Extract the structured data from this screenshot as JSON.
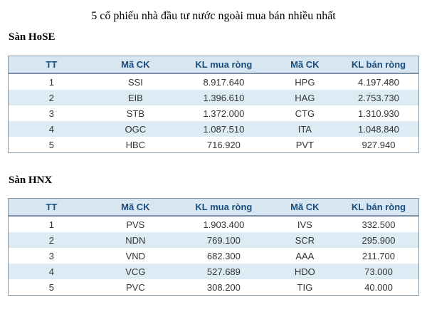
{
  "title": "5 cổ phiếu nhà đầu tư nước ngoài mua bán nhiều nhất",
  "colors": {
    "header_bg": "#d7e6f0",
    "stripe_bg": "#ddecf4",
    "header_text": "#1a4e7e",
    "body_text": "#333333",
    "border": "#8798a6",
    "header_border": "#7d93a5"
  },
  "columns": [
    "TT",
    "Mã CK",
    "KL mua ròng",
    "Mã CK",
    "KL bán ròng"
  ],
  "sections": [
    {
      "heading": "Sàn HoSE",
      "rows": [
        [
          "1",
          "SSI",
          "8.917.640",
          "HPG",
          "4.197.480"
        ],
        [
          "2",
          "EIB",
          "1.396.610",
          "HAG",
          "2.753.730"
        ],
        [
          "3",
          "STB",
          "1.372.000",
          "CTG",
          "1.310.930"
        ],
        [
          "4",
          "OGC",
          "1.087.510",
          "ITA",
          "1.048.840"
        ],
        [
          "5",
          "HBC",
          "716.920",
          "PVT",
          "927.940"
        ]
      ]
    },
    {
      "heading": "Sàn HNX",
      "rows": [
        [
          "1",
          "PVS",
          "1.903.400",
          "IVS",
          "332.500"
        ],
        [
          "2",
          "NDN",
          "769.100",
          "SCR",
          "295.900"
        ],
        [
          "3",
          "VND",
          "682.300",
          "AAA",
          "211.700"
        ],
        [
          "4",
          "VCG",
          "527.689",
          "HDO",
          "73.000"
        ],
        [
          "5",
          "PVC",
          "308.200",
          "TIG",
          "40.000"
        ]
      ]
    }
  ]
}
